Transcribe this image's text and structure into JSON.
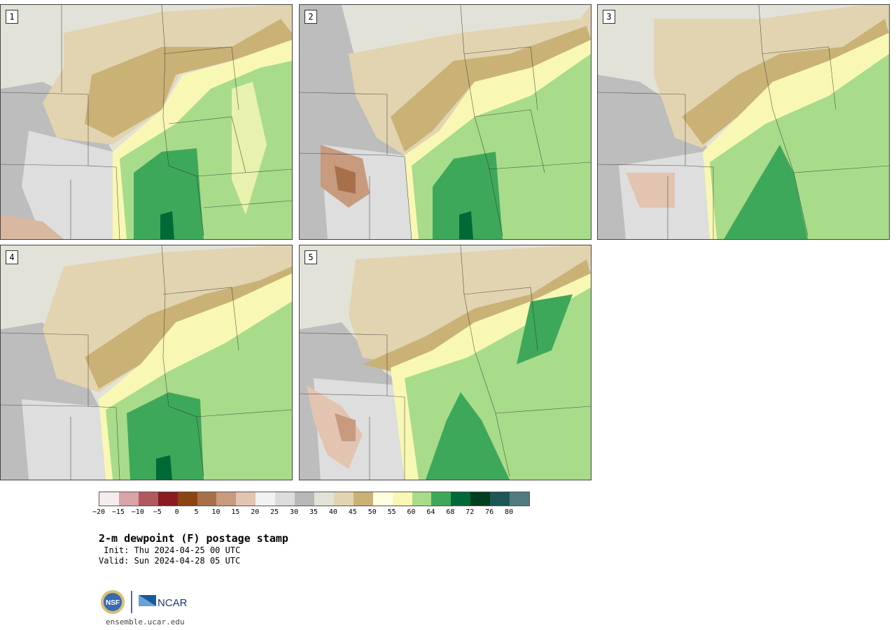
{
  "panels": [
    {
      "label": "1"
    },
    {
      "label": "2"
    },
    {
      "label": "3"
    },
    {
      "label": "4"
    },
    {
      "label": "5"
    }
  ],
  "colorbar": {
    "colors": [
      "#f5ecec",
      "#d8a4a8",
      "#b05a60",
      "#8a1a22",
      "#8b4513",
      "#a8704a",
      "#c89a7e",
      "#e2c4b0",
      "#f2f2f2",
      "#dcdcdc",
      "#b8b8b8",
      "#e2e2d6",
      "#e2d4b0",
      "#cab276",
      "#fffde0",
      "#f8f8b4",
      "#a8dc8a",
      "#3ea85a",
      "#006a36",
      "#003e22",
      "#1e5658",
      "#507a80"
    ],
    "ticks": [
      "−20",
      "−15",
      "−10",
      "−5",
      "0",
      "5",
      "10",
      "15",
      "20",
      "25",
      "30",
      "35",
      "40",
      "45",
      "50",
      "55",
      "60",
      "64",
      "68",
      "72",
      "76",
      "80"
    ]
  },
  "title": "2-m dewpoint (F) postage stamp",
  "init": " Init: Thu 2024-04-25 00 UTC",
  "valid": "Valid: Sun 2024-04-28 05 UTC",
  "logos": {
    "nsf": "NSF",
    "ncar": "NCAR"
  },
  "footer_url": "ensemble.ucar.edu"
}
